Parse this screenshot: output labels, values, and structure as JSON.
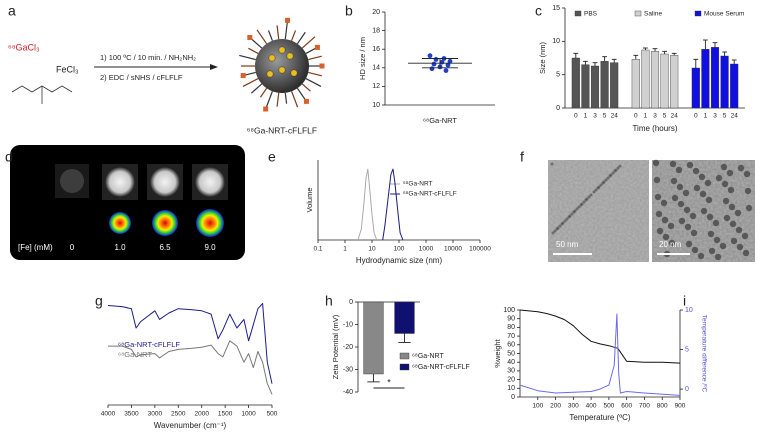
{
  "panel_labels": [
    "a",
    "b",
    "c",
    "d",
    "e",
    "f",
    "g",
    "h",
    "i"
  ],
  "scheme": {
    "reagent_1": "⁶⁸GaCl₃",
    "reagent_2": "FeCl₃",
    "step_1": "1) 100 ºC / 10 min. / NH₂NH₂",
    "step_2": "2) EDC / sNHS / cFLFLF",
    "product": "⁶⁸Ga-NRT-cFLFLF"
  },
  "phantom": {
    "label": "[Fe] (mM)",
    "concentrations": [
      "0",
      "1.0",
      "6.5",
      "9.0"
    ]
  },
  "tem": {
    "scale_bars": [
      "50 nm",
      "20 nm"
    ]
  },
  "chart_data": [
    {
      "type": "scatter",
      "ylabel": "HD size / nm",
      "ylim": [
        10,
        20
      ],
      "yticks": [
        10,
        12,
        14,
        16,
        18,
        20
      ],
      "categories": [
        "⁶⁸Ga-NRT"
      ],
      "series": [
        {
          "color": "#1c3fd0",
          "values": [
            15.3,
            15.0,
            14.9,
            14.7,
            14.6,
            14.4,
            14.3,
            14.1,
            13.9,
            13.7
          ]
        }
      ],
      "mean": 14.5,
      "sd": 0.5
    },
    {
      "type": "bar",
      "ylabel": "Size (nm)",
      "xlabel": "Time (hours)",
      "ylim": [
        0,
        15
      ],
      "yticks": [
        0,
        5,
        10,
        15
      ],
      "categories": [
        "0",
        "1",
        "3",
        "5",
        "24"
      ],
      "legend": "top",
      "series": [
        {
          "name": "PBS",
          "color": "#555555",
          "values": [
            7.5,
            6.5,
            6.3,
            7.0,
            6.8
          ],
          "errors": [
            0.7,
            0.5,
            0.5,
            0.7,
            0.5
          ]
        },
        {
          "name": "Saline",
          "color": "#d0d0d0",
          "values": [
            7.3,
            8.7,
            8.5,
            8.1,
            7.9
          ],
          "errors": [
            0.6,
            0.3,
            0.4,
            0.4,
            0.3
          ]
        },
        {
          "name": "Mouse Serum",
          "color": "#1010e0",
          "values": [
            6.0,
            8.8,
            9.1,
            7.8,
            6.6
          ],
          "errors": [
            1.3,
            1.4,
            0.7,
            0.6,
            0.6
          ]
        }
      ]
    },
    {
      "type": "line",
      "xscale": "log",
      "xlabel": "Hydrodynamic size (nm)",
      "ylabel": "Volume",
      "xlim": [
        0.1,
        100000
      ],
      "xticks": [
        0.1,
        1,
        10,
        100,
        1000,
        10000,
        100000
      ],
      "ylim": [
        0,
        22
      ],
      "legend": "upper right",
      "series": [
        {
          "name": "⁶⁸Ga-NRT",
          "color": "#aaaaaa",
          "x": [
            3,
            4,
            5,
            6,
            7,
            8,
            10,
            12,
            15
          ],
          "values": [
            0,
            3,
            10,
            17,
            19.5,
            15,
            7,
            2,
            0
          ]
        },
        {
          "name": "⁶⁸Ga-NRT-cFLFLF",
          "color": "#1a1a80",
          "x": [
            25,
            30,
            40,
            50,
            60,
            70,
            90,
            110,
            140
          ],
          "values": [
            0,
            4,
            12,
            18,
            19.5,
            16,
            8,
            2,
            0
          ]
        }
      ]
    },
    {
      "type": "line",
      "xlabel": "Wavenumber (cm⁻¹)",
      "xlim": [
        4000,
        500
      ],
      "xticks": [
        4000,
        3500,
        3000,
        2500,
        2000,
        1500,
        1000,
        500
      ],
      "ylim": [
        0,
        100
      ],
      "legend": "left",
      "x": [
        4000,
        3700,
        3500,
        3400,
        3300,
        3000,
        2900,
        2700,
        2500,
        2200,
        2000,
        1800,
        1650,
        1550,
        1400,
        1250,
        1100,
        1000,
        900,
        800,
        700,
        600,
        500
      ],
      "series": [
        {
          "name": "⁶⁸Ga-NRT-cFLFLF",
          "color": "#1c1c8c",
          "values": [
            93,
            92,
            90,
            72,
            78,
            88,
            80,
            86,
            90,
            89,
            88,
            85,
            62,
            70,
            85,
            72,
            80,
            60,
            75,
            90,
            95,
            40,
            20
          ]
        },
        {
          "name": "⁶⁸Ga-NRT",
          "color": "#777777",
          "values": [
            55,
            55,
            52,
            45,
            47,
            48,
            44,
            50,
            52,
            53,
            54,
            56,
            48,
            45,
            60,
            55,
            40,
            48,
            35,
            50,
            40,
            20,
            10
          ]
        }
      ]
    },
    {
      "type": "bar",
      "ylabel": "Zeta Potential (mV)",
      "ylim": [
        -40,
        0
      ],
      "yticks": [
        0,
        -10,
        -20,
        -30,
        -40
      ],
      "legend": "lower right",
      "annotation": "*",
      "series": [
        {
          "name": "⁶⁸Ga-NRT",
          "color": "#888888",
          "values": [
            -32
          ],
          "errors": [
            3.5
          ]
        },
        {
          "name": "⁶⁸Ga-NRT-cFLFLF",
          "color": "#101070",
          "values": [
            -14
          ],
          "errors": [
            4
          ]
        }
      ]
    },
    {
      "type": "line",
      "xlabel": "Temperature (ºC)",
      "ylabel": "%weight",
      "y2label": "Temperature difference /ºC",
      "xlim": [
        0,
        900
      ],
      "xticks": [
        100,
        200,
        300,
        400,
        500,
        600,
        700,
        800,
        900
      ],
      "ylim": [
        0,
        100
      ],
      "yticks": [
        0,
        10,
        20,
        30,
        40,
        50,
        60,
        70,
        80,
        90,
        100
      ],
      "y2lim": [
        -1,
        10
      ],
      "y2ticks": [
        0,
        5,
        10
      ],
      "series": [
        {
          "color": "#111111",
          "x": [
            0,
            50,
            100,
            150,
            200,
            250,
            300,
            350,
            400,
            450,
            500,
            550,
            600,
            700,
            800,
            900
          ],
          "values": [
            100,
            99,
            98,
            96,
            93,
            89,
            82,
            72,
            64,
            61,
            59,
            56,
            41,
            40,
            40,
            39
          ]
        },
        {
          "color": "#6a6af0",
          "axis": "y2",
          "x": [
            0,
            100,
            200,
            300,
            400,
            450,
            500,
            530,
            545,
            555,
            565,
            600,
            700,
            900
          ],
          "values": [
            0.5,
            -0.2,
            -0.5,
            -0.4,
            -0.3,
            0,
            0.5,
            3,
            9.5,
            2,
            -0.5,
            -0.3,
            -0.5,
            -0.8
          ]
        }
      ]
    }
  ]
}
